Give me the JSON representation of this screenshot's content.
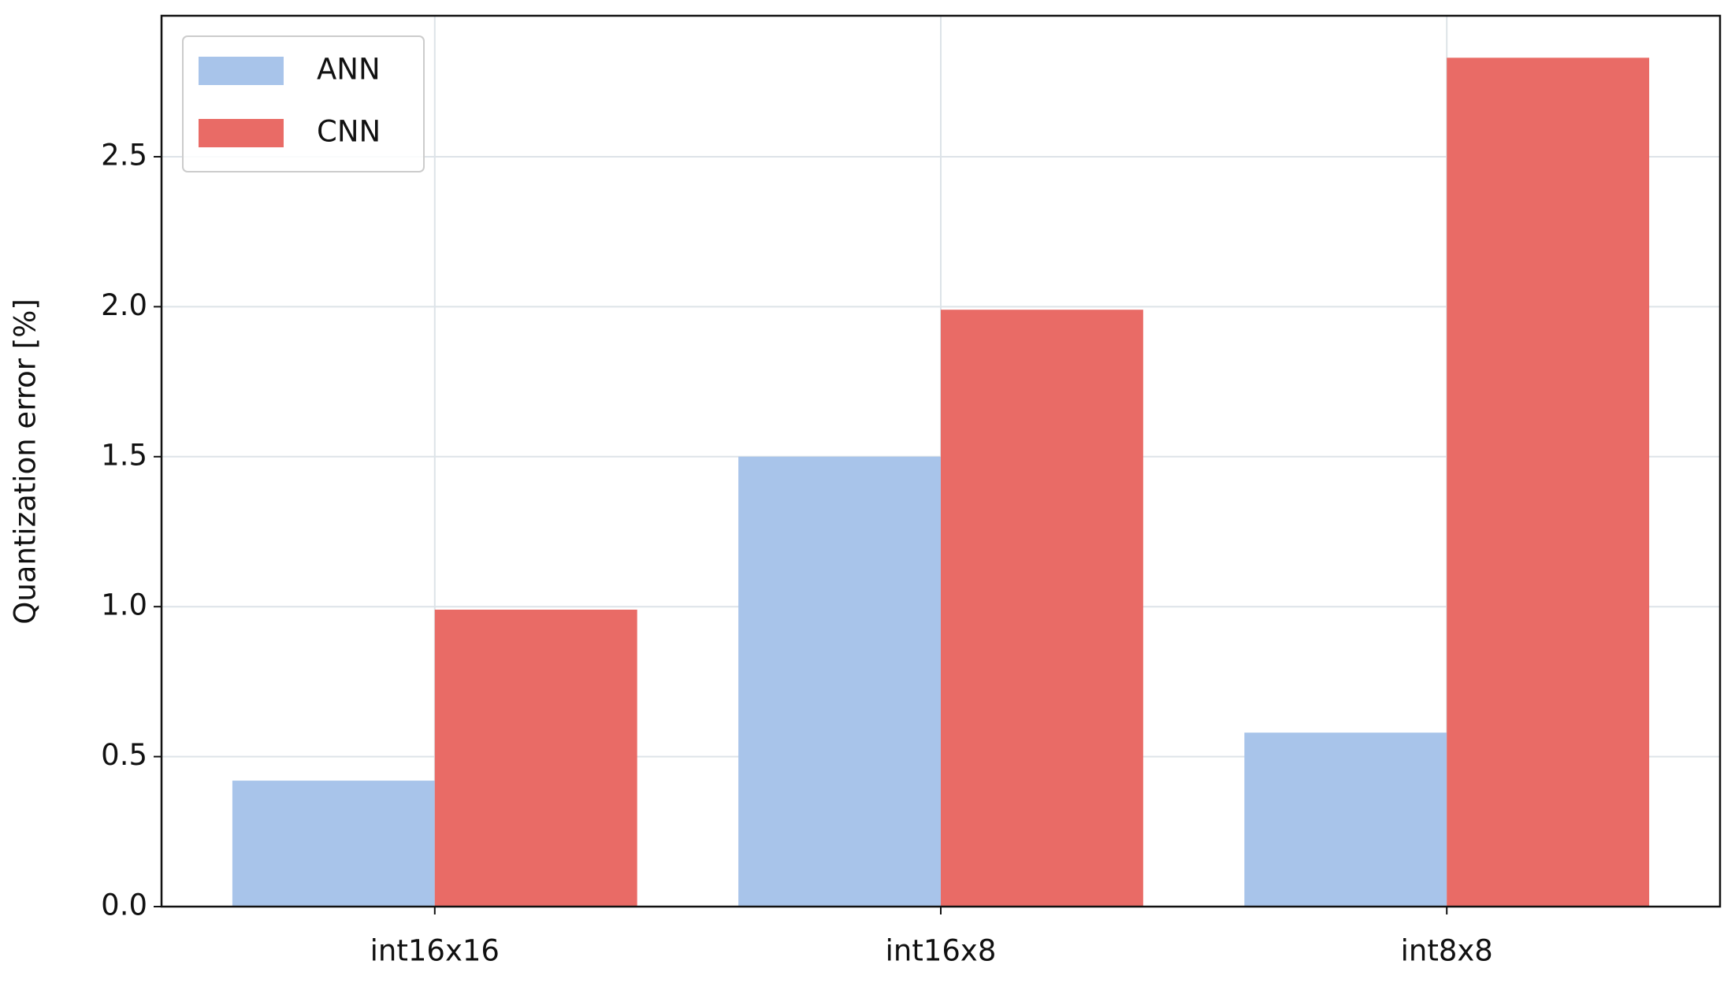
{
  "chart_data": {
    "type": "bar",
    "ylabel": "Quantization error [%]",
    "categories": [
      "int16x16",
      "int16x8",
      "int8x8"
    ],
    "series": [
      {
        "name": "ANN",
        "color": "#a8c4ea",
        "values": [
          0.42,
          1.5,
          0.58
        ]
      },
      {
        "name": "CNN",
        "color": "#e96b66",
        "values": [
          0.99,
          1.99,
          2.83
        ]
      }
    ],
    "ylim": [
      0,
      2.97
    ],
    "yticks": [
      {
        "value": 0,
        "label": "0.0"
      },
      0.5,
      {
        "value": 1,
        "label": "1.0"
      },
      1.5,
      {
        "value": 2,
        "label": "2.0"
      },
      2.5
    ],
    "grid": true,
    "legend": "upper left"
  }
}
